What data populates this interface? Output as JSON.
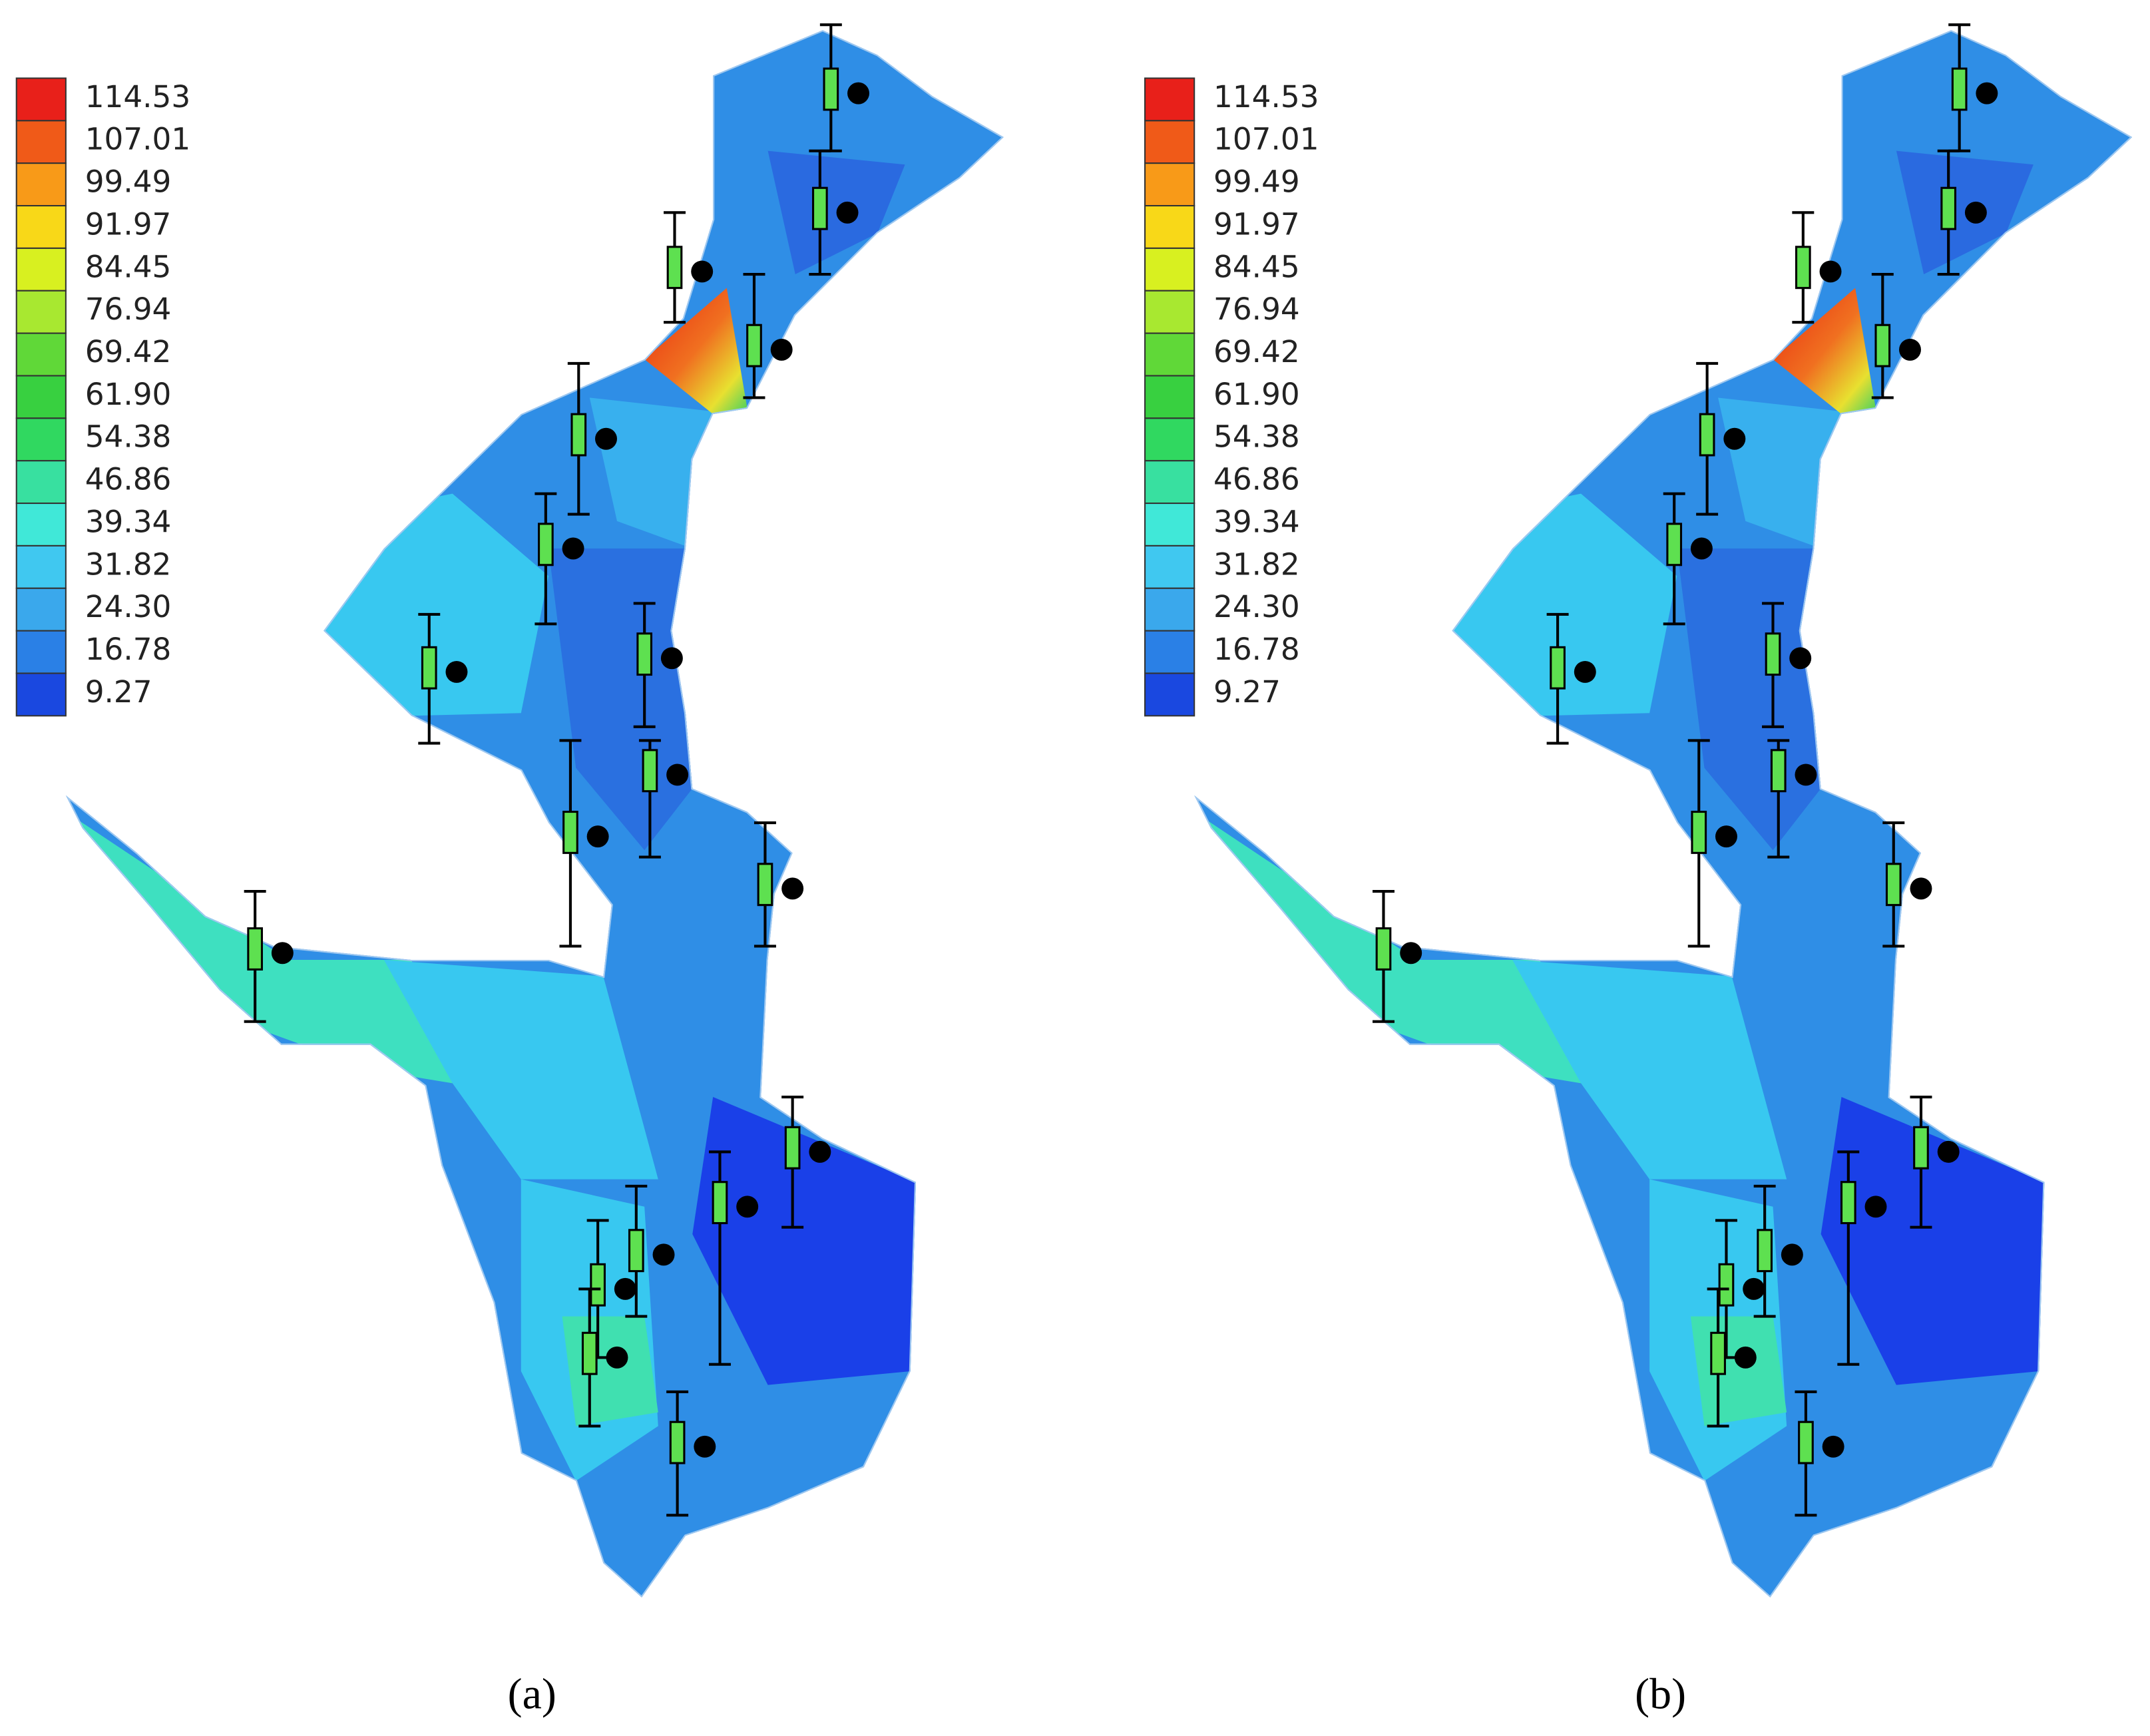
{
  "panels": [
    {
      "label": "(a)",
      "legend": [
        "114.53",
        "107.01",
        "99.49",
        "91.97",
        "84.45",
        "76.94",
        "69.42",
        "61.90",
        "54.38",
        "46.86",
        "39.34",
        "31.82",
        "24.30",
        "16.78",
        "9.27"
      ]
    },
    {
      "label": "(b)",
      "legend": [
        "114.53",
        "107.01",
        "99.49",
        "91.97",
        "84.45",
        "76.94",
        "69.42",
        "61.90",
        "54.38",
        "46.86",
        "39.34",
        "31.82",
        "24.30",
        "16.78",
        "9.27"
      ]
    }
  ]
}
